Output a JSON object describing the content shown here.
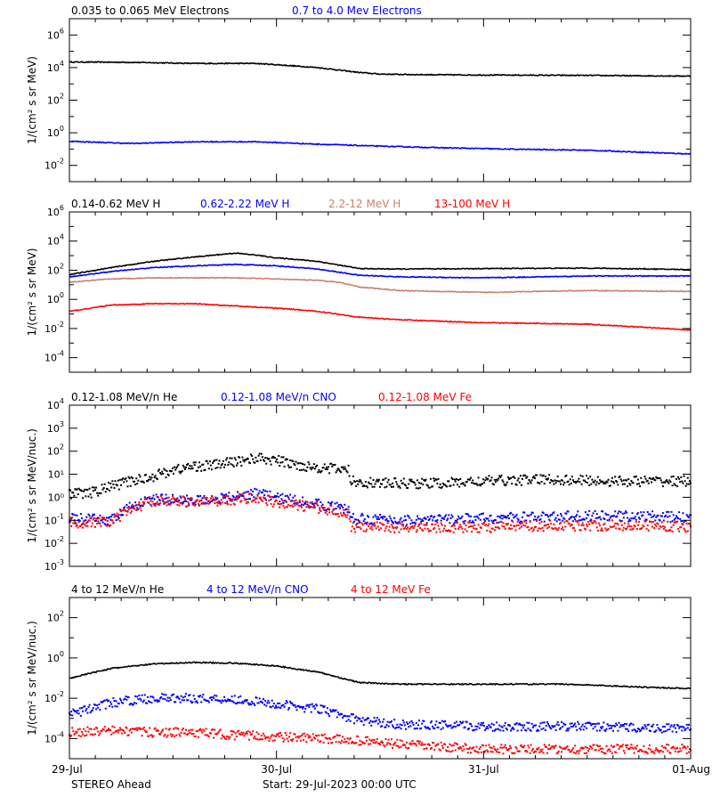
{
  "footer": {
    "spacecraft": "STEREO Ahead",
    "start": "Start: 29-Jul-2023 00:00 UTC"
  },
  "colors": {
    "black": "#000000",
    "blue": "#0000ff",
    "tan": "#c8826e",
    "red": "#ff0000"
  },
  "chart_data": [
    {
      "type": "line",
      "ylabel": "1/(cm² s sr MeV)",
      "yscale": "log",
      "ylim_exp": [
        -3,
        7
      ],
      "tick_exps": [
        -2,
        0,
        2,
        4,
        6
      ],
      "x_tick_labels": [],
      "series": [
        {
          "name": "0.035 to 0.065 MeV Electrons",
          "color": "#000000",
          "style": "line",
          "x": [
            0,
            0.3,
            0.6,
            0.9,
            1.0,
            1.2,
            1.4,
            1.5,
            1.6,
            1.8,
            2.0,
            2.5,
            3.0
          ],
          "y": [
            22000.0,
            21000.0,
            18000.0,
            18000.0,
            15000.0,
            10000.0,
            5000.0,
            4000.0,
            3800.0,
            3600.0,
            3500.0,
            3300.0,
            3000.0
          ]
        },
        {
          "name": "0.7 to 4.0 Mev Electrons",
          "color": "#0000ff",
          "style": "line",
          "x": [
            0,
            0.3,
            0.6,
            0.9,
            1.2,
            1.5,
            1.8,
            2.1,
            2.5,
            3.0
          ],
          "y": [
            0.3,
            0.22,
            0.28,
            0.28,
            0.2,
            0.15,
            0.12,
            0.1,
            0.085,
            0.05
          ]
        }
      ]
    },
    {
      "type": "line",
      "ylabel": "1/(cm² s sr MeV)",
      "yscale": "log",
      "ylim_exp": [
        -5,
        6
      ],
      "tick_exps": [
        -4,
        -2,
        0,
        2,
        4,
        6
      ],
      "x_tick_labels": [],
      "series": [
        {
          "name": "0.14-0.62 MeV H",
          "color": "#000000",
          "style": "line",
          "x": [
            0,
            0.2,
            0.4,
            0.6,
            0.8,
            0.9,
            1.0,
            1.1,
            1.2,
            1.4,
            1.6,
            2.0,
            2.5,
            3.0
          ],
          "y": [
            50,
            150,
            400,
            800,
            1500,
            1100,
            700,
            550,
            400,
            130,
            120,
            130,
            140,
            110
          ]
        },
        {
          "name": "0.62-2.22 MeV H",
          "color": "#0000ff",
          "style": "line",
          "x": [
            0,
            0.2,
            0.4,
            0.6,
            0.8,
            1.0,
            1.2,
            1.4,
            1.6,
            2.0,
            2.5,
            3.0
          ],
          "y": [
            35,
            80,
            150,
            200,
            250,
            200,
            120,
            45,
            35,
            30,
            40,
            40
          ]
        },
        {
          "name": "2.2-12 MeV H",
          "color": "#c8826e",
          "style": "line",
          "x": [
            0,
            0.2,
            0.4,
            0.6,
            0.8,
            1.0,
            1.2,
            1.3,
            1.4,
            1.6,
            2.0,
            2.5,
            3.0
          ],
          "y": [
            15,
            25,
            30,
            30,
            30,
            25,
            20,
            15,
            7,
            4,
            3,
            4,
            3.5
          ]
        },
        {
          "name": "13-100 MeV H",
          "color": "#ff0000",
          "style": "line",
          "x": [
            0,
            0.2,
            0.4,
            0.6,
            0.8,
            1.0,
            1.2,
            1.4,
            1.6,
            2.0,
            2.5,
            3.0
          ],
          "y": [
            0.15,
            0.4,
            0.5,
            0.5,
            0.35,
            0.25,
            0.15,
            0.06,
            0.04,
            0.025,
            0.02,
            0.008
          ]
        }
      ]
    },
    {
      "type": "scatter",
      "ylabel": "1/(cm² s sr MeV/nuc.)",
      "yscale": "log",
      "ylim_exp": [
        -3,
        4
      ],
      "tick_exps": [
        -3,
        -2,
        -1,
        0,
        1,
        2,
        3,
        4
      ],
      "tick_style": "power10_with_plain",
      "x_tick_labels": [],
      "series": [
        {
          "name": "0.12-1.08 MeV/n He",
          "color": "#000000",
          "style": "dots",
          "x": [
            0,
            0.1,
            0.2,
            0.3,
            0.4,
            0.5,
            0.6,
            0.7,
            0.8,
            0.9,
            1.0,
            1.1,
            1.2,
            1.35,
            1.36,
            1.5,
            1.8,
            2.0,
            2.3,
            2.6,
            3.0
          ],
          "y": [
            1.5,
            1.5,
            3,
            5,
            8,
            15,
            22,
            25,
            35,
            50,
            40,
            25,
            20,
            15,
            5,
            4,
            4,
            5,
            6,
            5,
            5
          ]
        },
        {
          "name": "0.12-1.08 MeV/n CNO",
          "color": "#0000ff",
          "style": "dots",
          "x": [
            0,
            0.2,
            0.3,
            0.4,
            0.5,
            0.6,
            0.8,
            0.9,
            1.0,
            1.2,
            1.35,
            1.36,
            1.6,
            2.0,
            2.4,
            2.8,
            3.0
          ],
          "y": [
            0.12,
            0.1,
            0.4,
            0.8,
            0.8,
            0.7,
            1.0,
            1.5,
            1.0,
            0.5,
            0.3,
            0.12,
            0.1,
            0.12,
            0.15,
            0.15,
            0.13
          ]
        },
        {
          "name": "0.12-1.08 MeV Fe",
          "color": "#ff0000",
          "style": "dots",
          "x": [
            0,
            0.2,
            0.3,
            0.4,
            0.5,
            0.6,
            0.8,
            0.9,
            1.0,
            1.2,
            1.35,
            1.36,
            1.6,
            2.0,
            2.4,
            2.8,
            3.0
          ],
          "y": [
            0.08,
            0.08,
            0.3,
            0.7,
            0.7,
            0.6,
            0.8,
            1.0,
            0.6,
            0.35,
            0.2,
            0.05,
            0.05,
            0.05,
            0.06,
            0.06,
            0.05
          ]
        }
      ]
    },
    {
      "type": "scatter",
      "ylabel": "1/(cm² s sr MeV/nuc.)",
      "yscale": "log",
      "ylim_exp": [
        -5,
        3
      ],
      "tick_exps": [
        -4,
        -2,
        0,
        2
      ],
      "x_tick_labels": [
        "29-Jul",
        "30-Jul",
        "31-Jul",
        "01-Aug"
      ],
      "series": [
        {
          "name": "4 to 12 MeV/n He",
          "color": "#000000",
          "style": "line",
          "x": [
            0,
            0.2,
            0.4,
            0.6,
            0.8,
            1.0,
            1.2,
            1.4,
            1.6,
            2.0,
            2.4,
            2.8,
            3.0
          ],
          "y": [
            0.1,
            0.3,
            0.5,
            0.6,
            0.55,
            0.4,
            0.2,
            0.06,
            0.05,
            0.05,
            0.05,
            0.035,
            0.03
          ]
        },
        {
          "name": "4 to 12 MeV/n CNO",
          "color": "#0000ff",
          "style": "dots",
          "x": [
            0,
            0.2,
            0.4,
            0.6,
            0.8,
            1.0,
            1.2,
            1.4,
            1.6,
            2.0,
            2.5,
            3.0
          ],
          "y": [
            0.0015,
            0.006,
            0.01,
            0.01,
            0.009,
            0.005,
            0.003,
            0.0008,
            0.0005,
            0.0004,
            0.0004,
            0.0003
          ]
        },
        {
          "name": "4 to 12 MeV Fe",
          "color": "#ff0000",
          "style": "dots",
          "x": [
            0,
            0.2,
            0.4,
            0.6,
            0.8,
            1.0,
            1.2,
            1.4,
            1.6,
            2.0
          ],
          "y": [
            0.0002,
            0.00025,
            0.0002,
            0.0002,
            0.00015,
            0.00012,
            0.0001,
            8e-05,
            5e-05,
            3e-05
          ]
        }
      ]
    }
  ]
}
